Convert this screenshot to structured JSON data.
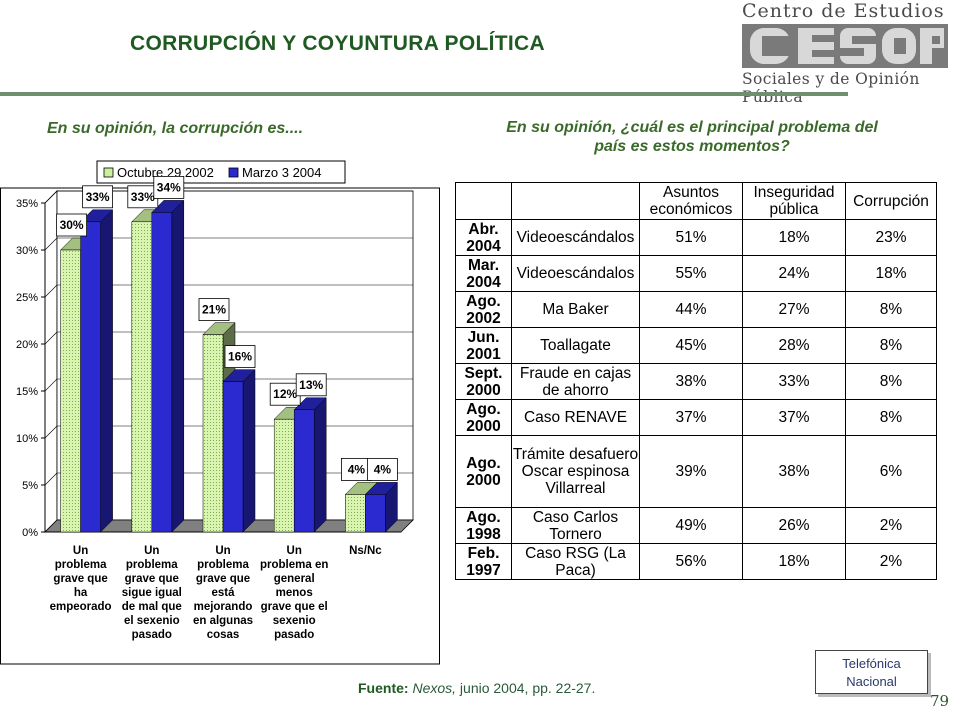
{
  "title": "CORRUPCIÓN Y COYUNTURA  POLÍTICA",
  "logo": {
    "line1": "Centro de Estudios",
    "mark": "CESOP",
    "line3": "Sociales y de Opinión Pública"
  },
  "left_question": "En su opinión, la corrupción es....",
  "right_question_line1": "En su opinión, ¿cuál es el principal problema del",
  "right_question_line2": "país es estos momentos?",
  "chart_data": {
    "type": "bar",
    "categories": [
      [
        "Un",
        "problema",
        "grave que",
        "ha",
        "empeorado"
      ],
      [
        "Un",
        "problema",
        "grave que",
        "sigue igual",
        "de mal que",
        "el sexenio",
        "pasado"
      ],
      [
        "Un",
        "problema",
        "grave que",
        "está",
        "mejorando",
        "en algunas",
        "cosas"
      ],
      [
        "Un",
        "problema en",
        "general",
        "menos",
        "grave que el",
        "sexenio",
        "pasado"
      ],
      [
        "Ns/Nc"
      ]
    ],
    "series": [
      {
        "name": "Octubre 29 2002",
        "values": [
          30,
          33,
          21,
          12,
          4
        ],
        "labels": [
          "30%",
          "33%",
          "21%",
          "12%",
          "4%"
        ],
        "color": "#ccf0a0"
      },
      {
        "name": "Marzo 3 2004",
        "values": [
          33,
          34,
          16,
          13,
          4
        ],
        "labels": [
          "33%",
          "34%",
          "16%",
          "13%",
          "4%"
        ],
        "color": "#2a2ad0"
      }
    ],
    "yticks": [
      "0%",
      "5%",
      "10%",
      "15%",
      "20%",
      "25%",
      "30%",
      "35%"
    ],
    "ylim": [
      0,
      35
    ],
    "grid": true,
    "legend": "top"
  },
  "table": {
    "headers": [
      "",
      "",
      "Asuntos económicos",
      "Inseguridad pública",
      "Corrupción"
    ],
    "rows": [
      {
        "date": "Abr. 2004",
        "event": "Videoescándalos",
        "a": "51%",
        "b": "18%",
        "c": "23%"
      },
      {
        "date": "Mar. 2004",
        "event": "Videoescándalos",
        "a": "55%",
        "b": "24%",
        "c": "18%"
      },
      {
        "date": "Ago. 2002",
        "event": "Ma Baker",
        "a": "44%",
        "b": "27%",
        "c": "8%"
      },
      {
        "date": "Jun. 2001",
        "event": "Toallagate",
        "a": "45%",
        "b": "28%",
        "c": "8%"
      },
      {
        "date": "Sept. 2000",
        "event": "Fraude en cajas de ahorro",
        "a": "38%",
        "b": "33%",
        "c": "8%"
      },
      {
        "date": "Ago. 2000",
        "event": "Caso RENAVE",
        "a": "37%",
        "b": "37%",
        "c": "8%"
      },
      {
        "date": "Ago. 2000",
        "event": "Trámite desafuero Oscar espinosa Villarreal",
        "a": "39%",
        "b": "38%",
        "c": "6%"
      },
      {
        "date": "Ago. 1998",
        "event": "Caso Carlos Tornero",
        "a": "49%",
        "b": "26%",
        "c": "2%"
      },
      {
        "date": "Feb. 1997",
        "event": "Caso RSG (La Paca)",
        "a": "56%",
        "b": "18%",
        "c": "2%"
      }
    ]
  },
  "source": {
    "label": "Fuente:",
    "pub": "Nexos,",
    "rest": " junio 2004, pp. 22-27."
  },
  "note": {
    "line1": "Telefónica",
    "line2": "Nacional"
  },
  "page_number": "79"
}
